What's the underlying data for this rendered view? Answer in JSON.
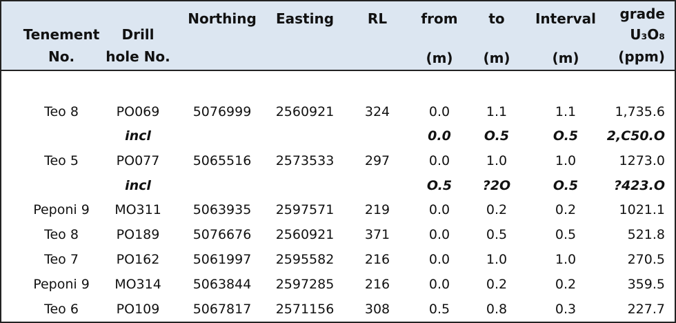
{
  "table": {
    "header": [
      [
        "Tenement",
        "No."
      ],
      [
        "Drill",
        "hole No."
      ],
      [
        "Northing"
      ],
      [
        "Easting"
      ],
      [
        "RL"
      ],
      [
        "from",
        "(m)"
      ],
      [
        "to",
        "(m)"
      ],
      [
        "Interval",
        "(m)"
      ],
      [
        "grade",
        "U₃O₈",
        "(ppm)"
      ]
    ],
    "rows": [
      [
        "Teo 8",
        "PO069",
        "5076999",
        "2560921",
        "324",
        "0.0",
        "1.1",
        "1.1",
        "1,735.6"
      ],
      [
        null,
        "incl",
        null,
        null,
        null,
        "0.0",
        "O.5",
        "O.5",
        "2,C50.O"
      ],
      [
        "Teo 5",
        "PO077",
        "5065516",
        "2573533",
        "297",
        "0.0",
        "1.0",
        "1.0",
        "1273.0"
      ],
      [
        null,
        "incl",
        null,
        null,
        null,
        "O.5",
        "?2O",
        "O.5",
        "?423.O"
      ],
      [
        "Peponi 9",
        "MO311",
        "5063935",
        "2597571",
        "219",
        "0.0",
        "0.2",
        "0.2",
        "1021.1"
      ],
      [
        "Teo 8",
        "PO189",
        "5076676",
        "2560921",
        "371",
        "0.0",
        "0.5",
        "0.5",
        "521.8"
      ],
      [
        "Teo 7",
        "PO162",
        "5061997",
        "2595582",
        "216",
        "0.0",
        "1.0",
        "1.0",
        "270.5"
      ],
      [
        "Peponi 9",
        "MO314",
        "5063844",
        "2597285",
        "216",
        "0.0",
        "0.2",
        "0.2",
        "359.5"
      ],
      [
        "Teo 6",
        "PO109",
        "5067817",
        "2571156",
        "308",
        "0.5",
        "0.8",
        "0.3",
        "227.7"
      ]
    ]
  }
}
